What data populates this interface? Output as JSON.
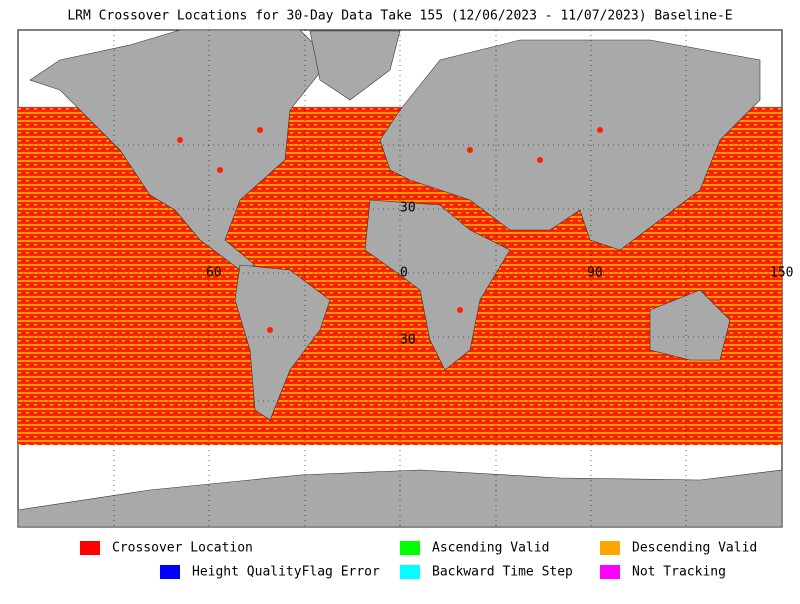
{
  "title": "LRM Crossover Locations for 30-Day Data Take 155 (12/06/2023 - 11/07/2023) Baseline-E",
  "map_labels": [
    "30",
    "60",
    "0",
    "90",
    "150",
    "30"
  ],
  "legend": [
    {
      "label": "Crossover Location",
      "color": "#ff0000"
    },
    {
      "label": "Ascending Valid",
      "color": "#00ff00"
    },
    {
      "label": "Descending Valid",
      "color": "#ffa500"
    },
    {
      "label": "Height QualityFlag Error",
      "color": "#0000ff"
    },
    {
      "label": "Backward Time Step",
      "color": "#00ffff"
    },
    {
      "label": "Not Tracking",
      "color": "#ff00ff"
    }
  ]
}
